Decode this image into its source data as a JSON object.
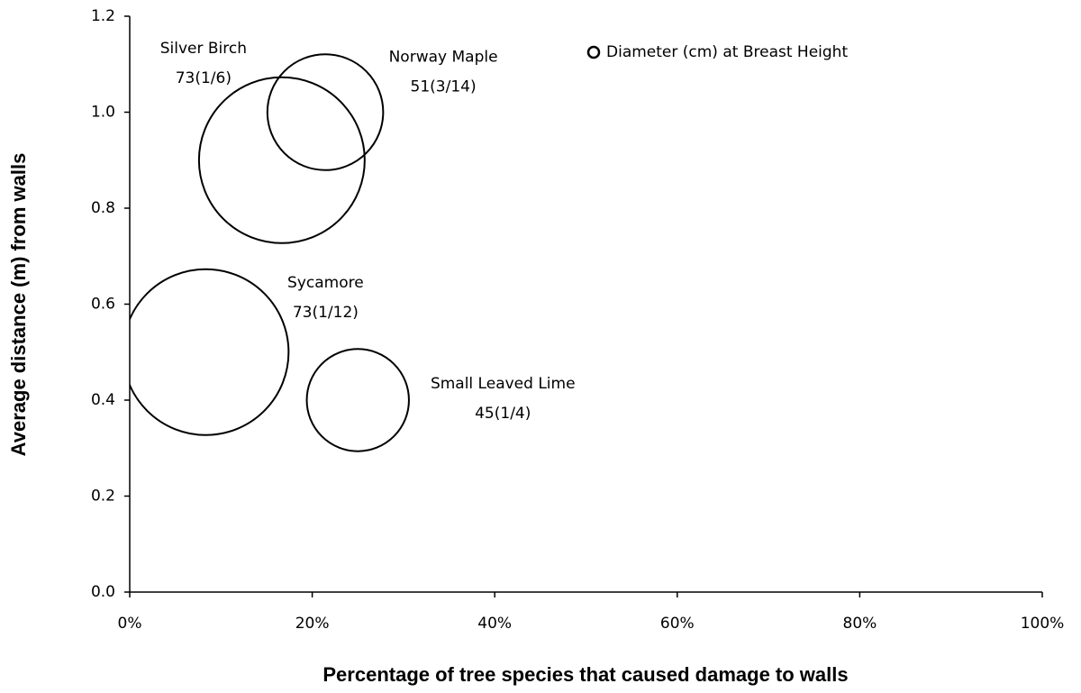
{
  "chart_data": {
    "type": "bubble",
    "xlabel": "Percentage of tree species that caused damage to walls",
    "ylabel": "Average distance (m) from walls",
    "xlim": [
      0,
      100
    ],
    "xticks": [
      {
        "value": 0,
        "label": "0%"
      },
      {
        "value": 20,
        "label": "20%"
      },
      {
        "value": 40,
        "label": "40%"
      },
      {
        "value": 60,
        "label": "60%"
      },
      {
        "value": 80,
        "label": "80%"
      },
      {
        "value": 100,
        "label": "100%"
      }
    ],
    "ylim": [
      0,
      1.2
    ],
    "yticks": [
      {
        "value": 0,
        "label": "0.0"
      },
      0.2,
      0.4,
      0.6,
      0.8,
      {
        "value": 1,
        "label": "1.0"
      },
      1.2
    ],
    "legend": "top",
    "series": [
      {
        "name": "Diameter (cm) at Breast Height",
        "color": "#000000",
        "labels": [
          "Silver Birch",
          "Norway Maple",
          "Sycamore",
          "Small Leaved Lime"
        ],
        "x": [
          16.67,
          21.43,
          8.33,
          25
        ],
        "values": [
          0.9,
          1.0,
          0.5,
          0.4
        ],
        "sizes": [
          73,
          51,
          73,
          45
        ],
        "value_labels": [
          "73(1/6)",
          "51(3/14)",
          "73(1/12)",
          "45(1/4)"
        ]
      }
    ]
  }
}
